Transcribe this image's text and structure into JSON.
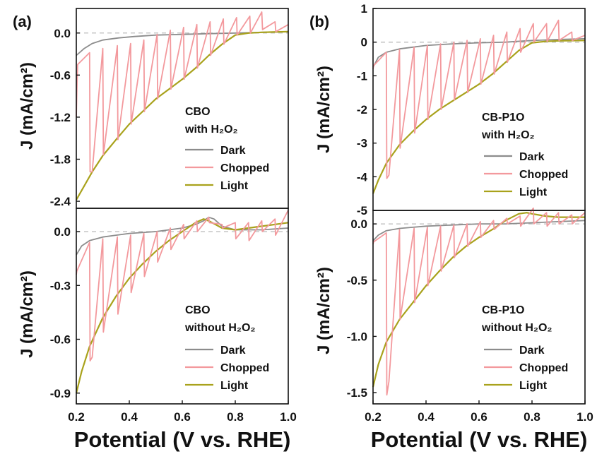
{
  "colors": {
    "dark": "#8c8c8c",
    "chopped": "#f3999d",
    "light": "#a9a21c",
    "zero_line": "#bbbbbb",
    "frame": "#111111"
  },
  "panel_labels": [
    "(a)",
    "(b)"
  ],
  "y_axis_title": "J (mA/cm²)",
  "x_axis_title": "Potential (V vs. RHE)",
  "legend": [
    "Dark",
    "Chopped",
    "Light"
  ],
  "chart_data": [
    {
      "id": "a-top",
      "type": "line",
      "panel": "(a)",
      "annotation": [
        "CBO",
        "with H₂O₂"
      ],
      "xlim": [
        0.2,
        1.0
      ],
      "ylim": [
        -2.5,
        0.35
      ],
      "y_ticks": [
        0.0,
        -0.6,
        -1.2,
        -1.8,
        -2.4
      ],
      "y_tick_labels": [
        "0.0",
        "-0.6",
        "-1.2",
        "-1.8",
        "-2.4"
      ],
      "series": [
        {
          "name": "Dark",
          "x": [
            0.2,
            0.23,
            0.26,
            0.3,
            0.36,
            0.42,
            0.5,
            0.6,
            0.7,
            0.8,
            0.9,
            1.0
          ],
          "y": [
            -0.32,
            -0.22,
            -0.15,
            -0.1,
            -0.07,
            -0.05,
            -0.03,
            -0.02,
            -0.01,
            0.0,
            0.01,
            0.02
          ]
        },
        {
          "name": "Light",
          "x": [
            0.2,
            0.23,
            0.26,
            0.3,
            0.35,
            0.4,
            0.45,
            0.5,
            0.55,
            0.6,
            0.65,
            0.7,
            0.75,
            0.8,
            0.85,
            0.9,
            1.0
          ],
          "y": [
            -2.38,
            -2.18,
            -1.98,
            -1.75,
            -1.52,
            -1.3,
            -1.12,
            -0.94,
            -0.8,
            -0.66,
            -0.5,
            -0.32,
            -0.16,
            -0.03,
            0.0,
            0.01,
            0.02
          ]
        },
        {
          "name": "Chopped",
          "x": [
            0.2,
            0.203,
            0.205,
            0.25,
            0.252,
            0.26,
            0.3,
            0.302,
            0.355,
            0.357,
            0.405,
            0.407,
            0.455,
            0.457,
            0.505,
            0.507,
            0.555,
            0.557,
            0.605,
            0.607,
            0.655,
            0.657,
            0.705,
            0.707,
            0.755,
            0.757,
            0.805,
            0.807,
            0.855,
            0.857,
            0.9,
            0.903,
            0.95,
            0.953,
            1.0
          ],
          "y": [
            -1.2,
            -0.7,
            -0.45,
            -0.28,
            -1.98,
            -1.98,
            -0.22,
            -1.74,
            -0.18,
            -1.52,
            -0.15,
            -1.3,
            -0.1,
            -1.12,
            -0.02,
            -0.94,
            0.04,
            -0.8,
            0.08,
            -0.66,
            0.12,
            -0.5,
            0.16,
            -0.32,
            0.2,
            -0.16,
            0.22,
            -0.03,
            0.24,
            0.0,
            0.3,
            0.05,
            0.16,
            0.02,
            0.12
          ]
        }
      ]
    },
    {
      "id": "a-bottom",
      "type": "line",
      "annotation": [
        "CBO",
        "without H₂O₂"
      ],
      "xlim": [
        0.2,
        1.0
      ],
      "ylim": [
        -0.96,
        0.13
      ],
      "y_ticks": [
        0.0,
        -0.3,
        -0.6,
        -0.9
      ],
      "y_tick_labels": [
        "0.0",
        "-0.3",
        "-0.6",
        "-0.9"
      ],
      "x_ticks": [
        0.2,
        0.4,
        0.6,
        0.8,
        1.0
      ],
      "x_tick_labels": [
        "0.2",
        "0.4",
        "0.6",
        "0.8",
        "1.0"
      ],
      "series": [
        {
          "name": "Dark",
          "x": [
            0.2,
            0.22,
            0.25,
            0.3,
            0.35,
            0.4,
            0.5,
            0.55,
            0.6,
            0.65,
            0.68,
            0.7,
            0.72,
            0.75,
            0.8,
            0.9,
            1.0
          ],
          "y": [
            -0.13,
            -0.08,
            -0.05,
            -0.03,
            -0.02,
            -0.01,
            0.0,
            0.01,
            0.02,
            0.04,
            0.06,
            0.08,
            0.07,
            0.03,
            0.01,
            0.01,
            0.02
          ]
        },
        {
          "name": "Light",
          "x": [
            0.2,
            0.22,
            0.25,
            0.3,
            0.35,
            0.4,
            0.45,
            0.5,
            0.55,
            0.6,
            0.65,
            0.68,
            0.7,
            0.75,
            0.8,
            0.9,
            1.0
          ],
          "y": [
            -0.9,
            -0.78,
            -0.64,
            -0.48,
            -0.36,
            -0.26,
            -0.18,
            -0.11,
            -0.05,
            0.0,
            0.05,
            0.07,
            0.06,
            0.02,
            0.01,
            0.03,
            0.05
          ]
        },
        {
          "name": "Chopped",
          "x": [
            0.2,
            0.202,
            0.25,
            0.252,
            0.26,
            0.3,
            0.302,
            0.355,
            0.357,
            0.405,
            0.407,
            0.455,
            0.457,
            0.505,
            0.507,
            0.555,
            0.557,
            0.605,
            0.607,
            0.655,
            0.657,
            0.7,
            0.702,
            0.75,
            0.752,
            0.8,
            0.802,
            0.85,
            0.852,
            0.9,
            0.902,
            0.95,
            0.952,
            1.0
          ],
          "y": [
            -0.24,
            -0.22,
            -0.06,
            -0.72,
            -0.7,
            -0.04,
            -0.56,
            -0.03,
            -0.46,
            -0.02,
            -0.34,
            -0.01,
            -0.25,
            0.0,
            -0.17,
            0.02,
            -0.1,
            0.04,
            -0.04,
            0.06,
            0.0,
            0.08,
            0.05,
            0.04,
            0.02,
            0.05,
            -0.04,
            0.05,
            -0.05,
            0.06,
            0.0,
            0.07,
            -0.02,
            0.12
          ]
        }
      ]
    },
    {
      "id": "b-top",
      "type": "line",
      "panel": "(b)",
      "annotation": [
        "CB-P1O",
        "with H₂O₂"
      ],
      "xlim": [
        0.2,
        1.0
      ],
      "ylim": [
        -5.0,
        1.0
      ],
      "y_ticks": [
        1,
        0,
        -1,
        -2,
        -3,
        -4,
        -5
      ],
      "y_tick_labels": [
        "1",
        "0",
        "-1",
        "-2",
        "-3",
        "-4",
        "-5"
      ],
      "series": [
        {
          "name": "Dark",
          "x": [
            0.2,
            0.22,
            0.25,
            0.3,
            0.35,
            0.4,
            0.5,
            0.6,
            0.7,
            0.8,
            0.9,
            1.0
          ],
          "y": [
            -0.75,
            -0.45,
            -0.3,
            -0.2,
            -0.15,
            -0.1,
            -0.05,
            -0.02,
            0.0,
            0.05,
            0.08,
            0.1
          ]
        },
        {
          "name": "Light",
          "x": [
            0.2,
            0.22,
            0.25,
            0.3,
            0.35,
            0.4,
            0.45,
            0.5,
            0.55,
            0.6,
            0.65,
            0.7,
            0.75,
            0.8,
            0.85,
            0.9,
            1.0
          ],
          "y": [
            -4.5,
            -4.1,
            -3.6,
            -3.05,
            -2.65,
            -2.3,
            -2.0,
            -1.75,
            -1.5,
            -1.25,
            -0.95,
            -0.6,
            -0.25,
            -0.02,
            0.02,
            0.04,
            0.05
          ]
        },
        {
          "name": "Chopped",
          "x": [
            0.2,
            0.202,
            0.25,
            0.252,
            0.26,
            0.3,
            0.302,
            0.355,
            0.357,
            0.405,
            0.407,
            0.455,
            0.457,
            0.505,
            0.507,
            0.555,
            0.557,
            0.605,
            0.607,
            0.655,
            0.657,
            0.705,
            0.707,
            0.755,
            0.757,
            0.805,
            0.807,
            0.855,
            0.857,
            0.9,
            0.902,
            0.95,
            0.952,
            1.0
          ],
          "y": [
            -0.8,
            -0.7,
            -0.3,
            -4.05,
            -3.95,
            -0.22,
            -3.15,
            -0.15,
            -2.7,
            -0.1,
            -2.3,
            -0.05,
            -2.0,
            0.0,
            -1.72,
            0.05,
            -1.5,
            0.1,
            -1.25,
            0.2,
            -0.95,
            0.3,
            -0.6,
            0.4,
            -0.3,
            0.55,
            0.0,
            0.55,
            0.02,
            0.65,
            0.05,
            0.3,
            0.05,
            0.2
          ]
        }
      ]
    },
    {
      "id": "b-bottom",
      "type": "line",
      "annotation": [
        "CB-P1O",
        "without H₂O₂"
      ],
      "xlim": [
        0.2,
        1.0
      ],
      "ylim": [
        -1.6,
        0.12
      ],
      "y_ticks": [
        0.0,
        -0.5,
        -1.0,
        -1.5
      ],
      "y_tick_labels": [
        "0.0",
        "-0.5",
        "-1.0",
        "-1.5"
      ],
      "x_ticks": [
        0.2,
        0.4,
        0.6,
        0.8,
        1.0
      ],
      "x_tick_labels": [
        "0.2",
        "0.4",
        "0.6",
        "0.8",
        "1.0"
      ],
      "series": [
        {
          "name": "Dark",
          "x": [
            0.2,
            0.22,
            0.25,
            0.3,
            0.35,
            0.4,
            0.5,
            0.6,
            0.7,
            0.8,
            0.9,
            1.0
          ],
          "y": [
            -0.15,
            -0.1,
            -0.06,
            -0.04,
            -0.03,
            -0.02,
            -0.01,
            0.0,
            0.0,
            0.01,
            0.02,
            0.03
          ]
        },
        {
          "name": "Light",
          "x": [
            0.2,
            0.22,
            0.25,
            0.3,
            0.35,
            0.4,
            0.45,
            0.5,
            0.55,
            0.6,
            0.65,
            0.7,
            0.75,
            0.78,
            0.8,
            0.85,
            0.9,
            1.0
          ],
          "y": [
            -1.45,
            -1.25,
            -1.05,
            -0.85,
            -0.7,
            -0.55,
            -0.42,
            -0.3,
            -0.2,
            -0.12,
            -0.05,
            0.03,
            0.09,
            0.1,
            0.09,
            0.07,
            0.06,
            0.06
          ]
        },
        {
          "name": "Chopped",
          "x": [
            0.2,
            0.202,
            0.25,
            0.252,
            0.26,
            0.3,
            0.302,
            0.355,
            0.357,
            0.405,
            0.407,
            0.455,
            0.457,
            0.505,
            0.507,
            0.555,
            0.557,
            0.605,
            0.607,
            0.655,
            0.657,
            0.705,
            0.707,
            0.755,
            0.757,
            0.805,
            0.807,
            0.855,
            0.857,
            0.9,
            0.902,
            0.95,
            0.952,
            1.0
          ],
          "y": [
            -0.18,
            -0.16,
            -0.08,
            -1.52,
            -1.4,
            -0.05,
            -0.85,
            -0.04,
            -0.7,
            -0.03,
            -0.55,
            -0.02,
            -0.42,
            -0.01,
            -0.3,
            0.0,
            -0.2,
            0.02,
            -0.12,
            0.03,
            -0.05,
            0.05,
            0.0,
            0.07,
            -0.02,
            0.14,
            0.0,
            0.1,
            -0.02,
            0.1,
            0.0,
            0.08,
            0.0,
            0.1
          ]
        }
      ]
    }
  ]
}
